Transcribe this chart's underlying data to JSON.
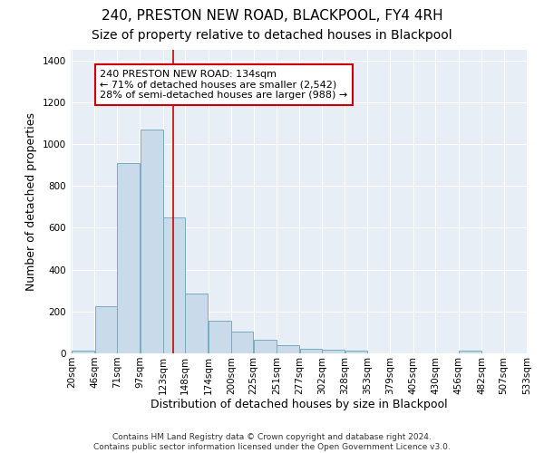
{
  "title": "240, PRESTON NEW ROAD, BLACKPOOL, FY4 4RH",
  "subtitle": "Size of property relative to detached houses in Blackpool",
  "xlabel": "Distribution of detached houses by size in Blackpool",
  "ylabel": "Number of detached properties",
  "bar_color": "#c9daea",
  "bar_edge_color": "#7aaabf",
  "background_color": "#e8eef5",
  "grid_color": "#ffffff",
  "vline_x": 134,
  "vline_color": "#cc0000",
  "annotation_text": "240 PRESTON NEW ROAD: 134sqm\n← 71% of detached houses are smaller (2,542)\n28% of semi-detached houses are larger (988) →",
  "annotation_box_color": "white",
  "annotation_box_edge_color": "#cc0000",
  "footnote": "Contains HM Land Registry data © Crown copyright and database right 2024.\nContains public sector information licensed under the Open Government Licence v3.0.",
  "bins": [
    20,
    46,
    71,
    97,
    123,
    148,
    174,
    200,
    225,
    251,
    277,
    302,
    328,
    353,
    379,
    405,
    430,
    456,
    482,
    507,
    533
  ],
  "bar_heights": [
    15,
    225,
    910,
    1070,
    650,
    285,
    155,
    105,
    65,
    38,
    22,
    18,
    13,
    0,
    0,
    0,
    0,
    12,
    0,
    0
  ],
  "ylim": [
    0,
    1450
  ],
  "yticks": [
    0,
    200,
    400,
    600,
    800,
    1000,
    1200,
    1400
  ],
  "title_fontsize": 11,
  "subtitle_fontsize": 10,
  "label_fontsize": 9,
  "tick_fontsize": 7.5,
  "annotation_fontsize": 8,
  "footnote_fontsize": 6.5
}
